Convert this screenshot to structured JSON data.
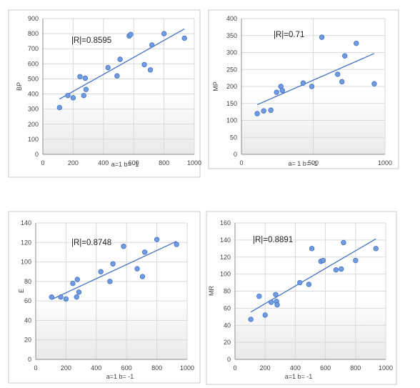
{
  "chart_data": [
    {
      "type": "scatter",
      "ylabel": "BP",
      "xlabel": "a=1  b= -1",
      "annotation": "|R|=0.8595",
      "xlim": [
        0,
        1000
      ],
      "ylim": [
        0,
        900
      ],
      "xticks": [
        0,
        200,
        400,
        600,
        800,
        1000
      ],
      "yticks": [
        0,
        100,
        200,
        300,
        400,
        500,
        600,
        700,
        800,
        900
      ],
      "grid": true,
      "trendline": "linear",
      "x": [
        110,
        165,
        200,
        245,
        270,
        280,
        285,
        430,
        490,
        510,
        570,
        580,
        670,
        710,
        720,
        800,
        935
      ],
      "y": [
        310,
        390,
        375,
        515,
        390,
        505,
        430,
        575,
        520,
        630,
        785,
        795,
        595,
        560,
        725,
        800,
        770
      ]
    },
    {
      "type": "scatter",
      "ylabel": "MP",
      "xlabel": "a= 1  b= -1",
      "annotation": "|R|=0.71",
      "xlim": [
        0,
        1000
      ],
      "ylim": [
        0,
        400
      ],
      "xticks": [
        0,
        500,
        1000
      ],
      "yticks": [
        0,
        50,
        100,
        150,
        200,
        250,
        300,
        350,
        400
      ],
      "grid": true,
      "trendline": "linear",
      "x": [
        110,
        155,
        205,
        245,
        275,
        285,
        430,
        490,
        560,
        670,
        700,
        720,
        800,
        925
      ],
      "y": [
        120,
        128,
        130,
        183,
        200,
        188,
        210,
        200,
        345,
        236,
        214,
        290,
        327,
        208
      ]
    },
    {
      "type": "scatter",
      "ylabel": "E",
      "xlabel": "a=1  b= -1",
      "annotation": "|R|=0.8748",
      "xlim": [
        0,
        1000
      ],
      "ylim": [
        0,
        140
      ],
      "xticks": [
        0,
        200,
        400,
        600,
        800,
        1000
      ],
      "yticks": [
        0,
        20,
        40,
        60,
        80,
        100,
        120,
        140
      ],
      "grid": true,
      "trendline": "linear",
      "x": [
        105,
        165,
        200,
        245,
        270,
        275,
        285,
        430,
        490,
        510,
        580,
        670,
        705,
        720,
        800,
        930
      ],
      "y": [
        64,
        64,
        62,
        78,
        64,
        82,
        69,
        90,
        80,
        98,
        116,
        93,
        85,
        110,
        123,
        118
      ]
    },
    {
      "type": "scatter",
      "ylabel": "MR",
      "xlabel": "a=1  b= -1",
      "annotation": "|R|=0.8891",
      "xlim": [
        0,
        1000
      ],
      "ylim": [
        0,
        160
      ],
      "xticks": [
        0,
        200,
        400,
        600,
        800,
        1000
      ],
      "yticks": [
        0,
        20,
        40,
        60,
        80,
        100,
        120,
        140,
        160
      ],
      "grid": true,
      "trendline": "linear",
      "x": [
        105,
        160,
        200,
        240,
        270,
        275,
        280,
        430,
        490,
        510,
        570,
        585,
        670,
        705,
        720,
        800,
        935
      ],
      "y": [
        47,
        74,
        52,
        67,
        76,
        68,
        64,
        90,
        88,
        130,
        115,
        116,
        105,
        106,
        137,
        116,
        130
      ]
    }
  ]
}
